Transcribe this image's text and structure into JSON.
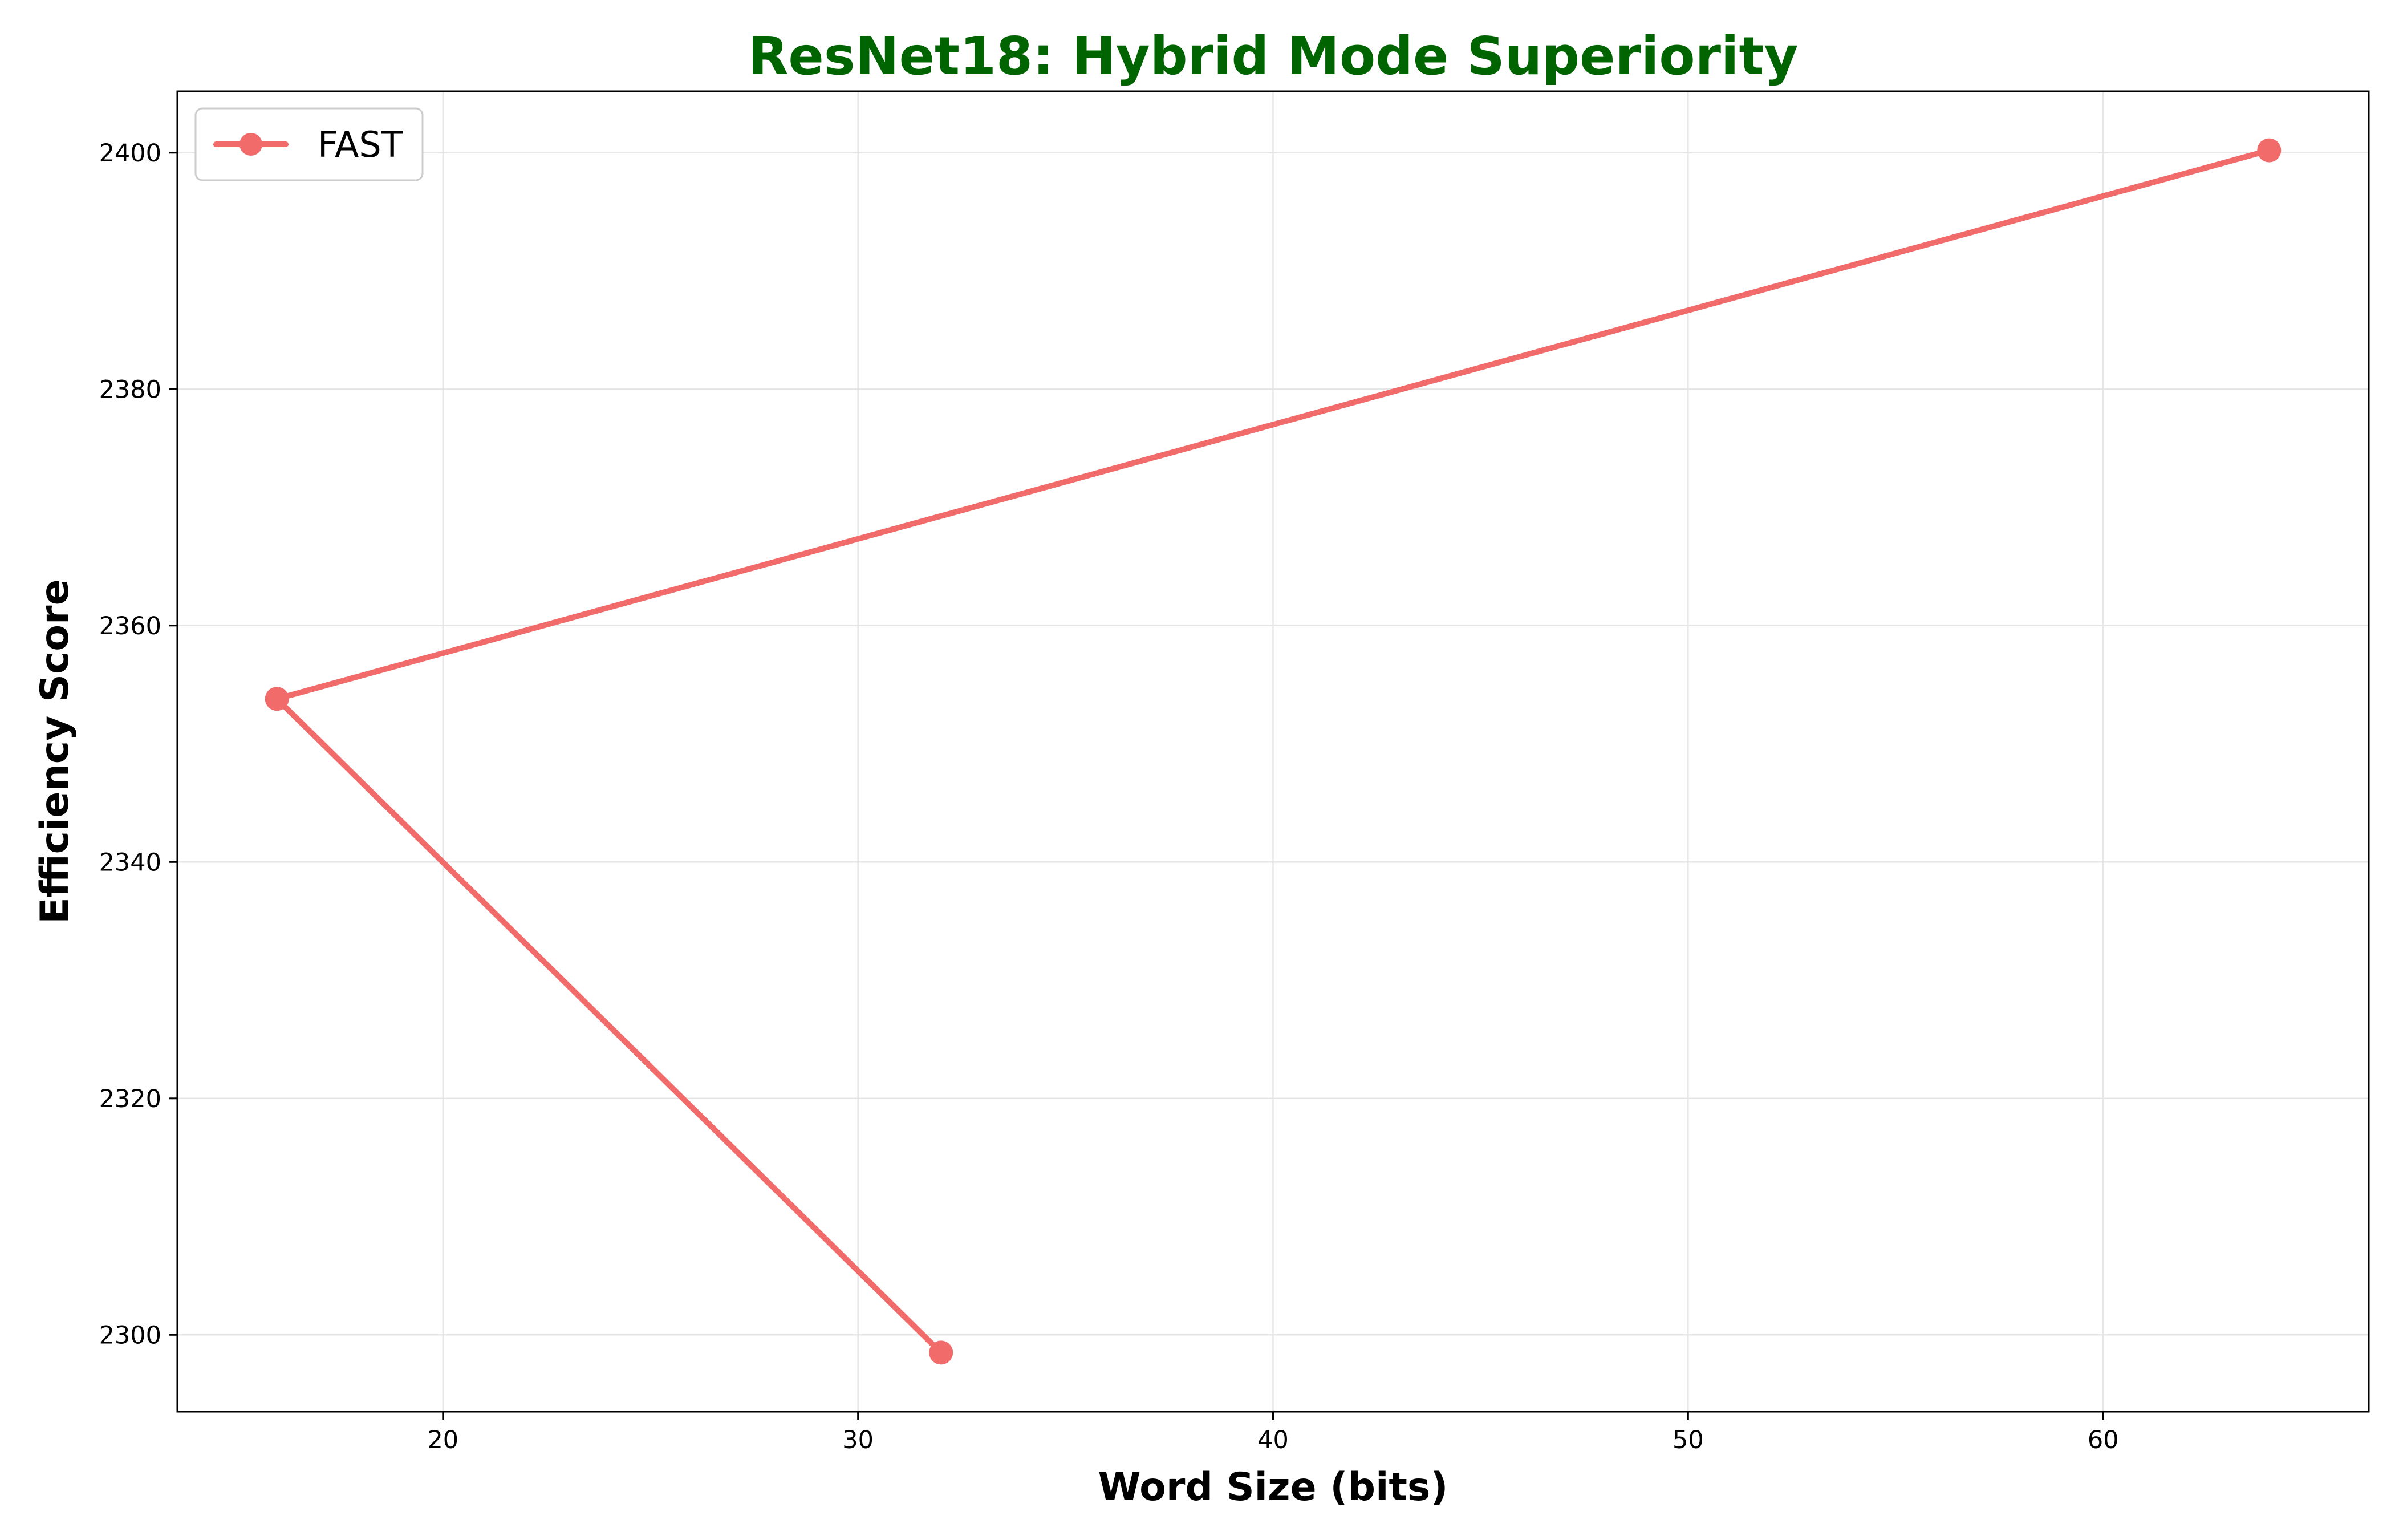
{
  "chart_data": {
    "type": "line",
    "title": "ResNet18: Hybrid Mode Superiority",
    "xlabel": "Word Size (bits)",
    "ylabel": "Efficiency Score",
    "xlim": [
      13.6,
      66.4
    ],
    "ylim": [
      2293.5,
      2405.2
    ],
    "xticks": [
      20,
      30,
      40,
      50,
      60
    ],
    "yticks": [
      2300,
      2320,
      2340,
      2360,
      2380,
      2400
    ],
    "grid": true,
    "legend_position": "top-left",
    "series": [
      {
        "name": "FAST",
        "x": [
          32,
          16,
          64
        ],
        "y": [
          2298.5,
          2353.8,
          2400.2
        ],
        "color": "#f26b6b",
        "marker": "circle"
      }
    ]
  },
  "colors": {
    "title": "#006400",
    "grid": "#e6e6e6",
    "axes": "#000000"
  }
}
